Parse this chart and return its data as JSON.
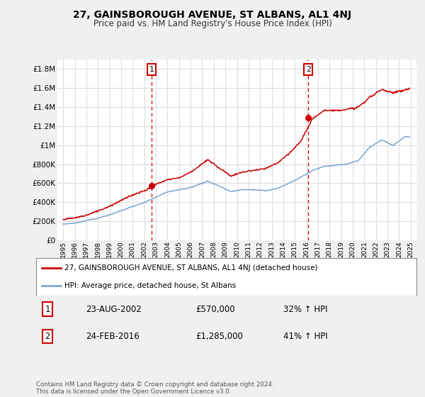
{
  "title": "27, GAINSBOROUGH AVENUE, ST ALBANS, AL1 4NJ",
  "subtitle": "Price paid vs. HM Land Registry's House Price Index (HPI)",
  "bg_color": "#f0f0f0",
  "plot_bg_color": "#ffffff",
  "grid_color": "#dddddd",
  "line1_color": "#cc0000",
  "line2_color": "#6699cc",
  "ylim": [
    0,
    1900000
  ],
  "yticks": [
    0,
    200000,
    400000,
    600000,
    800000,
    1000000,
    1200000,
    1400000,
    1600000,
    1800000
  ],
  "ytick_labels": [
    "£0",
    "£200K",
    "£400K",
    "£600K",
    "£800K",
    "£1M",
    "£1.2M",
    "£1.4M",
    "£1.6M",
    "£1.8M"
  ],
  "marker1_year": 2002.65,
  "marker1_label": "1",
  "marker1_price": 570000,
  "marker2_year": 2016.15,
  "marker2_label": "2",
  "marker2_price": 1285000,
  "annotation_box_color": "#cc0000",
  "legend_label1": "27, GAINSBOROUGH AVENUE, ST ALBANS, AL1 4NJ (detached house)",
  "legend_label2": "HPI: Average price, detached house, St Albans",
  "table_row1": [
    "1",
    "23-AUG-2002",
    "£570,000",
    "32% ↑ HPI"
  ],
  "table_row2": [
    "2",
    "24-FEB-2016",
    "£1,285,000",
    "41% ↑ HPI"
  ],
  "footnote": "Contains HM Land Registry data © Crown copyright and database right 2024.\nThis data is licensed under the Open Government Licence v3.0.",
  "xmin": 1994.5,
  "xmax": 2025.5
}
